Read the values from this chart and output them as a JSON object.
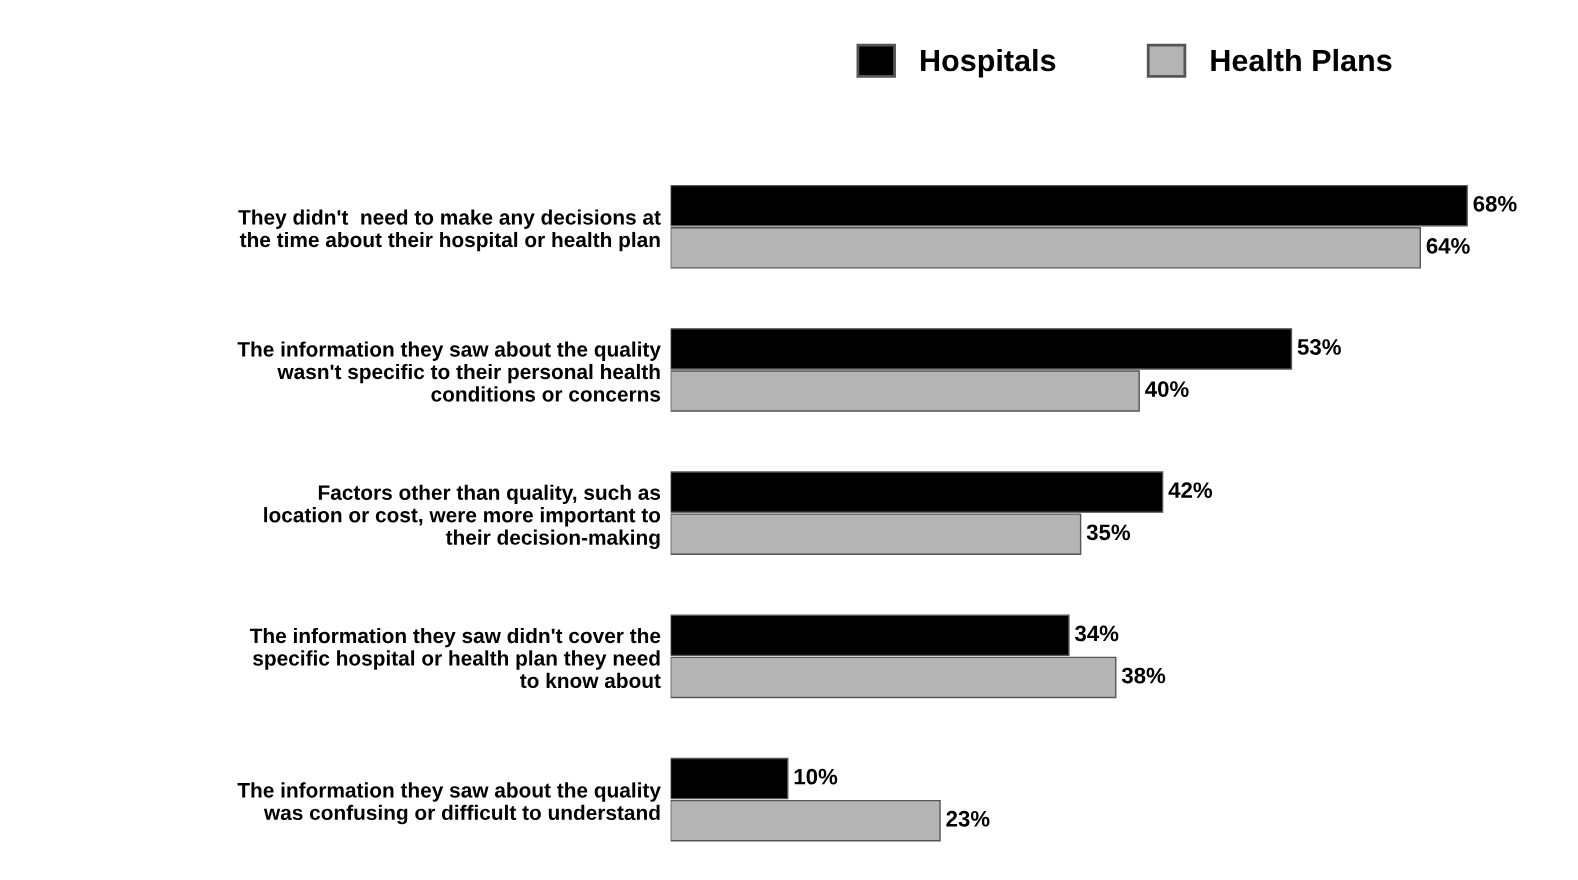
{
  "chart_data": {
    "type": "bar",
    "orientation": "horizontal",
    "legend": "top right",
    "grid": false,
    "categories": [
      "They didn't  need to make any decisions at\nthe time about their hospital or health plan",
      "The information they saw about the quality\nwasn't specific to their personal health\nconditions or concerns",
      "Factors other than quality, such as\nlocation or cost, were more important to\ntheir decision-making",
      "The information they saw didn't cover the\nspecific hospital or health plan they need\nto know about",
      "The information they saw about the quality\nwas confusing or difficult to understand"
    ],
    "series": [
      {
        "name": "Hospitals",
        "color": "#000000",
        "values": [
          68,
          53,
          42,
          34,
          10
        ],
        "value_labels": [
          "68%",
          "53%",
          "42%",
          "34%",
          "10%"
        ]
      },
      {
        "name": "Health Plans",
        "color": "#b4b4b4",
        "values": [
          64,
          40,
          35,
          38,
          23
        ],
        "value_labels": [
          "64%",
          "40%",
          "35%",
          "38%",
          "23%"
        ]
      }
    ]
  }
}
